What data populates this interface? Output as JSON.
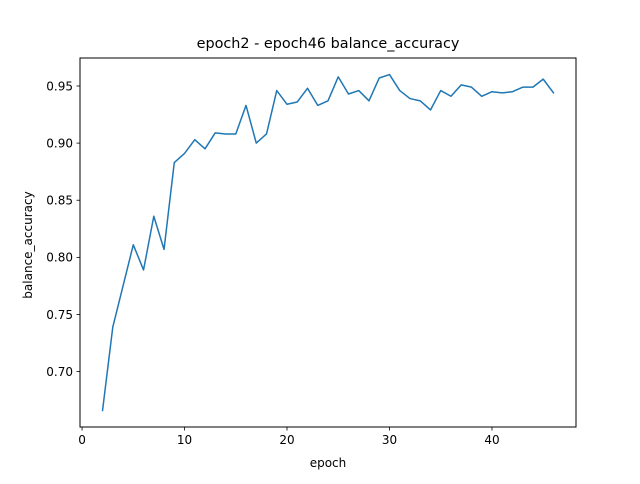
{
  "chart_data": {
    "type": "line",
    "title": "epoch2 - epoch46 balance_accuracy",
    "xlabel": "epoch",
    "ylabel": "balance_accuracy",
    "xlim": [
      -0.2,
      48.2
    ],
    "ylim": [
      0.6515,
      0.9745
    ],
    "grid": false,
    "x_ticks": [
      0,
      10,
      20,
      30,
      40
    ],
    "x_tick_labels": [
      "0",
      "10",
      "20",
      "30",
      "40"
    ],
    "y_ticks": [
      0.7,
      0.75,
      0.8,
      0.85,
      0.9,
      0.95
    ],
    "y_tick_labels": [
      "0.70",
      "0.75",
      "0.80",
      "0.85",
      "0.90",
      "0.95"
    ],
    "series": [
      {
        "color": "#1f77b4",
        "x": [
          2,
          3,
          4,
          5,
          6,
          7,
          8,
          9,
          10,
          11,
          12,
          13,
          14,
          15,
          16,
          17,
          18,
          19,
          20,
          21,
          22,
          23,
          24,
          25,
          26,
          27,
          28,
          29,
          30,
          31,
          32,
          33,
          34,
          35,
          36,
          37,
          38,
          39,
          40,
          41,
          42,
          43,
          44,
          45,
          46
        ],
        "y": [
          0.666,
          0.739,
          0.775,
          0.811,
          0.789,
          0.836,
          0.807,
          0.883,
          0.891,
          0.903,
          0.895,
          0.909,
          0.908,
          0.908,
          0.933,
          0.9,
          0.908,
          0.946,
          0.934,
          0.936,
          0.948,
          0.933,
          0.937,
          0.958,
          0.943,
          0.946,
          0.937,
          0.957,
          0.96,
          0.946,
          0.939,
          0.937,
          0.929,
          0.946,
          0.941,
          0.951,
          0.949,
          0.941,
          0.945,
          0.944,
          0.945,
          0.949,
          0.949,
          0.956,
          0.944
        ]
      }
    ]
  }
}
